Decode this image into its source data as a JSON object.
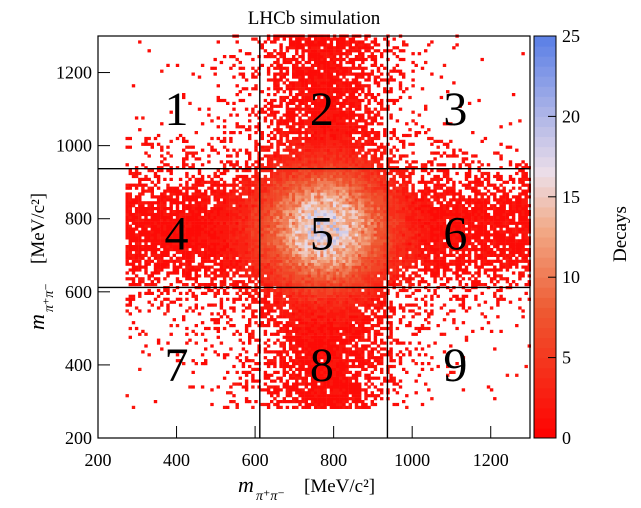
{
  "chart_data": {
    "type": "heatmap",
    "title": "LHCb simulation",
    "xlabel": {
      "main": "m",
      "sub": "π⁺π⁻",
      "unit": "[MeV/c²]"
    },
    "ylabel": {
      "main": "m",
      "sub": "π⁺π⁻",
      "unit": "[MeV/c²]"
    },
    "zlabel": "Decays",
    "xlim": [
      200,
      1300
    ],
    "ylim": [
      200,
      1300
    ],
    "zlim": [
      0,
      25
    ],
    "xticks": [
      200,
      400,
      600,
      800,
      1000,
      1200
    ],
    "yticks": [
      200,
      400,
      600,
      800,
      1000,
      1200
    ],
    "zticks": [
      0,
      5,
      10,
      15,
      20,
      25
    ],
    "region_boundaries": {
      "x": [
        612,
        937
      ],
      "y": [
        612,
        937
      ]
    },
    "region_labels": [
      {
        "label": "1",
        "x": 400,
        "y": 1100
      },
      {
        "label": "2",
        "x": 770,
        "y": 1100
      },
      {
        "label": "3",
        "x": 1110,
        "y": 1100
      },
      {
        "label": "4",
        "x": 400,
        "y": 760
      },
      {
        "label": "5",
        "x": 770,
        "y": 760
      },
      {
        "label": "6",
        "x": 1110,
        "y": 760
      },
      {
        "label": "7",
        "x": 400,
        "y": 400
      },
      {
        "label": "8",
        "x": 770,
        "y": 400
      },
      {
        "label": "9",
        "x": 1110,
        "y": 400
      }
    ],
    "density_peak": {
      "x": 775,
      "y": 770,
      "max_count": 16
    },
    "colors": {
      "low": "#ff0000",
      "mid": "#f0a080",
      "high_mid": "#ebe0ec",
      "high": "#5a7fe6"
    }
  }
}
